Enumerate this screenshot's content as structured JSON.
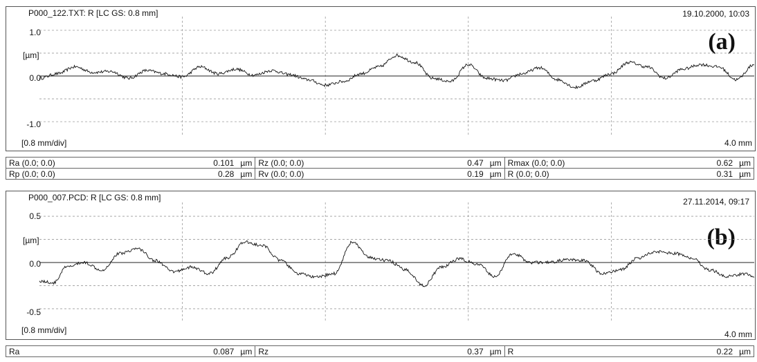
{
  "chart_data": [
    {
      "type": "line",
      "title": "P000_122.TXT: R [LC GS: 0.8 mm]",
      "date": "19.10.2000, 10:03",
      "label": "(a)",
      "ylabel": "[µm]",
      "x_scale_label": "[0.8 mm/div]",
      "length_label": "4.0 mm",
      "y_ticks": [
        "1.0",
        "0.0",
        "-1.0"
      ],
      "xlim": [
        0,
        4.0
      ],
      "ylim": [
        -1.3,
        1.3
      ],
      "grid": true,
      "series": [
        {
          "x": [
            0,
            0.1,
            0.2,
            0.3,
            0.4,
            0.5,
            0.6,
            0.7,
            0.8,
            0.9,
            1.0,
            1.1,
            1.2,
            1.3,
            1.4,
            1.5,
            1.6,
            1.7,
            1.8,
            1.9,
            2.0,
            2.1,
            2.2,
            2.3,
            2.4,
            2.5,
            2.6,
            2.7,
            2.8,
            2.9,
            3.0,
            3.1,
            3.2,
            3.3,
            3.4,
            3.5,
            3.6,
            3.7,
            3.8,
            3.9,
            4.0
          ],
          "y": [
            -0.05,
            0.05,
            0.2,
            0.08,
            0.1,
            -0.05,
            0.12,
            0.05,
            -0.02,
            0.2,
            0.05,
            0.15,
            0.02,
            0.12,
            0.03,
            -0.08,
            -0.2,
            -0.12,
            0.05,
            0.2,
            0.45,
            0.3,
            -0.05,
            -0.12,
            0.25,
            -0.05,
            -0.1,
            0.05,
            0.18,
            -0.08,
            -0.25,
            -0.1,
            0.05,
            0.3,
            0.2,
            -0.05,
            0.15,
            0.25,
            0.2,
            -0.08,
            0.25
          ]
        }
      ]
    },
    {
      "type": "line",
      "title": "P000_007.PCD: R [LC GS: 0.8 mm]",
      "date": "27.11.2014, 09:17",
      "label": "(b)",
      "ylabel": "[µm]",
      "x_scale_label": "[0.8 mm/div]",
      "length_label": "4.0 mm",
      "y_ticks": [
        "0.5",
        "0.0",
        "-0.5"
      ],
      "xlim": [
        0,
        4.0
      ],
      "ylim": [
        -0.65,
        0.65
      ],
      "grid": true,
      "series": [
        {
          "x": [
            0,
            0.08,
            0.15,
            0.25,
            0.35,
            0.45,
            0.55,
            0.65,
            0.75,
            0.85,
            0.95,
            1.05,
            1.15,
            1.25,
            1.35,
            1.45,
            1.55,
            1.65,
            1.75,
            1.85,
            1.95,
            2.05,
            2.15,
            2.25,
            2.35,
            2.45,
            2.55,
            2.65,
            2.75,
            2.85,
            2.95,
            3.05,
            3.15,
            3.25,
            3.35,
            3.45,
            3.55,
            3.65,
            3.75,
            3.85,
            3.95,
            4.0
          ],
          "y": [
            -0.2,
            -0.22,
            -0.05,
            0.0,
            -0.08,
            0.1,
            0.15,
            0.02,
            -0.1,
            -0.05,
            -0.12,
            0.05,
            0.22,
            0.18,
            0.02,
            -0.12,
            -0.16,
            -0.12,
            0.22,
            0.05,
            0.02,
            -0.08,
            -0.25,
            -0.05,
            0.04,
            -0.02,
            -0.15,
            0.1,
            0.0,
            0.0,
            0.03,
            0.02,
            -0.12,
            -0.08,
            0.05,
            0.12,
            0.1,
            0.05,
            -0.08,
            -0.15,
            -0.12,
            -0.15
          ]
        }
      ]
    }
  ],
  "params_a": {
    "row1": [
      {
        "label": "Ra (0.0; 0.0)",
        "value": "0.101",
        "unit": "µm"
      },
      {
        "label": "Rz (0.0; 0.0)",
        "value": "0.47",
        "unit": "µm"
      },
      {
        "label": "Rmax (0.0; 0.0)",
        "value": "0.62",
        "unit": "µm"
      }
    ],
    "row2": [
      {
        "label": "Rp (0.0; 0.0)",
        "value": "0.28",
        "unit": "µm"
      },
      {
        "label": "Rv (0.0; 0.0)",
        "value": "0.19",
        "unit": "µm"
      },
      {
        "label": "R (0.0; 0.0)",
        "value": "0.31",
        "unit": "µm"
      }
    ]
  },
  "params_b": {
    "row1": [
      {
        "label": "Ra",
        "value": "0.087",
        "unit": "µm"
      },
      {
        "label": "Rz",
        "value": "0.37",
        "unit": "µm"
      },
      {
        "label": "R",
        "value": "0.22",
        "unit": "µm"
      }
    ]
  }
}
